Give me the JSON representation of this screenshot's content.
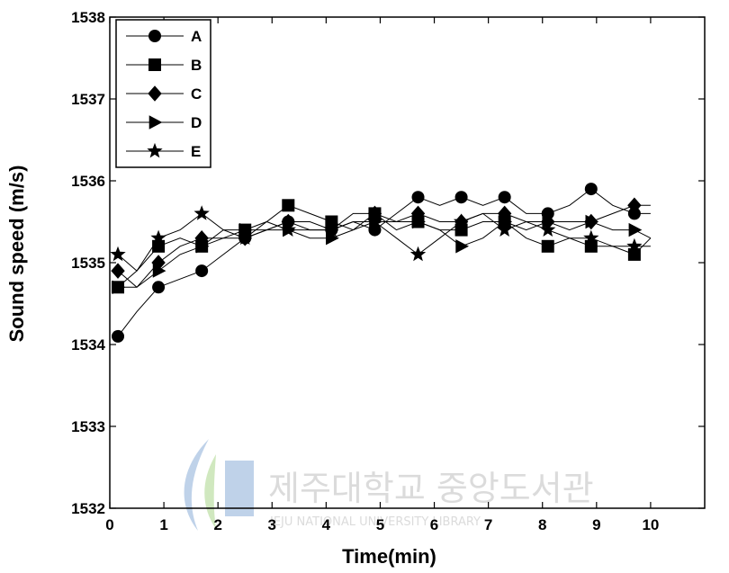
{
  "chart_data": {
    "type": "line",
    "xlabel": "Time(min)",
    "ylabel": "Sound speed (m/s)",
    "xlim": [
      0,
      11
    ],
    "ylim": [
      1532,
      1538
    ],
    "xticks": [
      0,
      1,
      2,
      3,
      4,
      5,
      6,
      7,
      8,
      9,
      10
    ],
    "yticks": [
      1532,
      1533,
      1534,
      1535,
      1536,
      1537,
      1538
    ],
    "grid": false,
    "legend_position": "top-left",
    "series": [
      {
        "name": "A",
        "marker": "circle",
        "x": [
          0.15,
          0.5,
          0.9,
          1.3,
          1.7,
          2.1,
          2.5,
          2.9,
          3.3,
          3.7,
          4.1,
          4.5,
          4.9,
          5.3,
          5.7,
          6.1,
          6.5,
          6.9,
          7.3,
          7.7,
          8.1,
          8.5,
          8.9,
          9.3,
          9.7,
          10.0
        ],
        "y": [
          1534.1,
          1534.4,
          1534.7,
          1534.8,
          1534.9,
          1535.1,
          1535.3,
          1535.4,
          1535.5,
          1535.4,
          1535.4,
          1535.5,
          1535.4,
          1535.6,
          1535.8,
          1535.7,
          1535.8,
          1535.7,
          1535.8,
          1535.6,
          1535.6,
          1535.7,
          1535.9,
          1535.7,
          1535.6,
          1535.6
        ]
      },
      {
        "name": "B",
        "marker": "square",
        "x": [
          0.15,
          0.5,
          0.9,
          1.3,
          1.7,
          2.1,
          2.5,
          2.9,
          3.3,
          3.7,
          4.1,
          4.5,
          4.9,
          5.3,
          5.7,
          6.1,
          6.5,
          6.9,
          7.3,
          7.7,
          8.1,
          8.5,
          8.9,
          9.3,
          9.7,
          10.0
        ],
        "y": [
          1534.7,
          1534.9,
          1535.2,
          1535.3,
          1535.2,
          1535.4,
          1535.4,
          1535.5,
          1535.7,
          1535.6,
          1535.5,
          1535.4,
          1535.6,
          1535.4,
          1535.5,
          1535.4,
          1535.4,
          1535.5,
          1535.5,
          1535.3,
          1535.2,
          1535.3,
          1535.2,
          1535.2,
          1535.1,
          1535.3
        ]
      },
      {
        "name": "C",
        "marker": "diamond",
        "x": [
          0.15,
          0.5,
          0.9,
          1.3,
          1.7,
          2.1,
          2.5,
          2.9,
          3.3,
          3.7,
          4.1,
          4.5,
          4.9,
          5.3,
          5.7,
          6.1,
          6.5,
          6.9,
          7.3,
          7.7,
          8.1,
          8.5,
          8.9,
          9.3,
          9.7,
          10.0
        ],
        "y": [
          1534.9,
          1534.7,
          1535.0,
          1535.2,
          1535.3,
          1535.3,
          1535.3,
          1535.4,
          1535.5,
          1535.5,
          1535.4,
          1535.6,
          1535.6,
          1535.5,
          1535.6,
          1535.5,
          1535.5,
          1535.6,
          1535.6,
          1535.5,
          1535.5,
          1535.4,
          1535.5,
          1535.6,
          1535.7,
          1535.7
        ]
      },
      {
        "name": "D",
        "marker": "triangle-right",
        "x": [
          0.15,
          0.5,
          0.9,
          1.3,
          1.7,
          2.1,
          2.5,
          2.9,
          3.3,
          3.7,
          4.1,
          4.5,
          4.9,
          5.3,
          5.7,
          6.1,
          6.5,
          6.9,
          7.3,
          7.7,
          8.1,
          8.5,
          8.9,
          9.3,
          9.7,
          10.0
        ],
        "y": [
          1534.7,
          1534.7,
          1534.9,
          1535.1,
          1535.2,
          1535.3,
          1535.4,
          1535.4,
          1535.4,
          1535.3,
          1535.3,
          1535.4,
          1535.5,
          1535.5,
          1535.5,
          1535.4,
          1535.2,
          1535.3,
          1535.5,
          1535.4,
          1535.5,
          1535.5,
          1535.5,
          1535.4,
          1535.4,
          1535.3
        ]
      },
      {
        "name": "E",
        "marker": "star",
        "x": [
          0.15,
          0.5,
          0.9,
          1.3,
          1.7,
          2.1,
          2.5,
          2.9,
          3.3,
          3.7,
          4.1,
          4.5,
          4.9,
          5.3,
          5.7,
          6.1,
          6.5,
          6.9,
          7.3,
          7.7,
          8.1,
          8.5,
          8.9,
          9.3,
          9.7,
          10.0
        ],
        "y": [
          1535.1,
          1534.9,
          1535.3,
          1535.4,
          1535.6,
          1535.4,
          1535.3,
          1535.5,
          1535.4,
          1535.4,
          1535.4,
          1535.5,
          1535.5,
          1535.3,
          1535.1,
          1535.3,
          1535.5,
          1535.6,
          1535.4,
          1535.5,
          1535.4,
          1535.3,
          1535.3,
          1535.2,
          1535.2,
          1535.2
        ]
      }
    ]
  },
  "watermark": {
    "korean": "제주대학교 중앙도서관",
    "english": "JEJU NATIONAL UNIVERSITY LIBRARY",
    "colors": {
      "blue": "#4a7fc1",
      "green": "#7cc04a",
      "text": "#9a9a9a"
    }
  }
}
